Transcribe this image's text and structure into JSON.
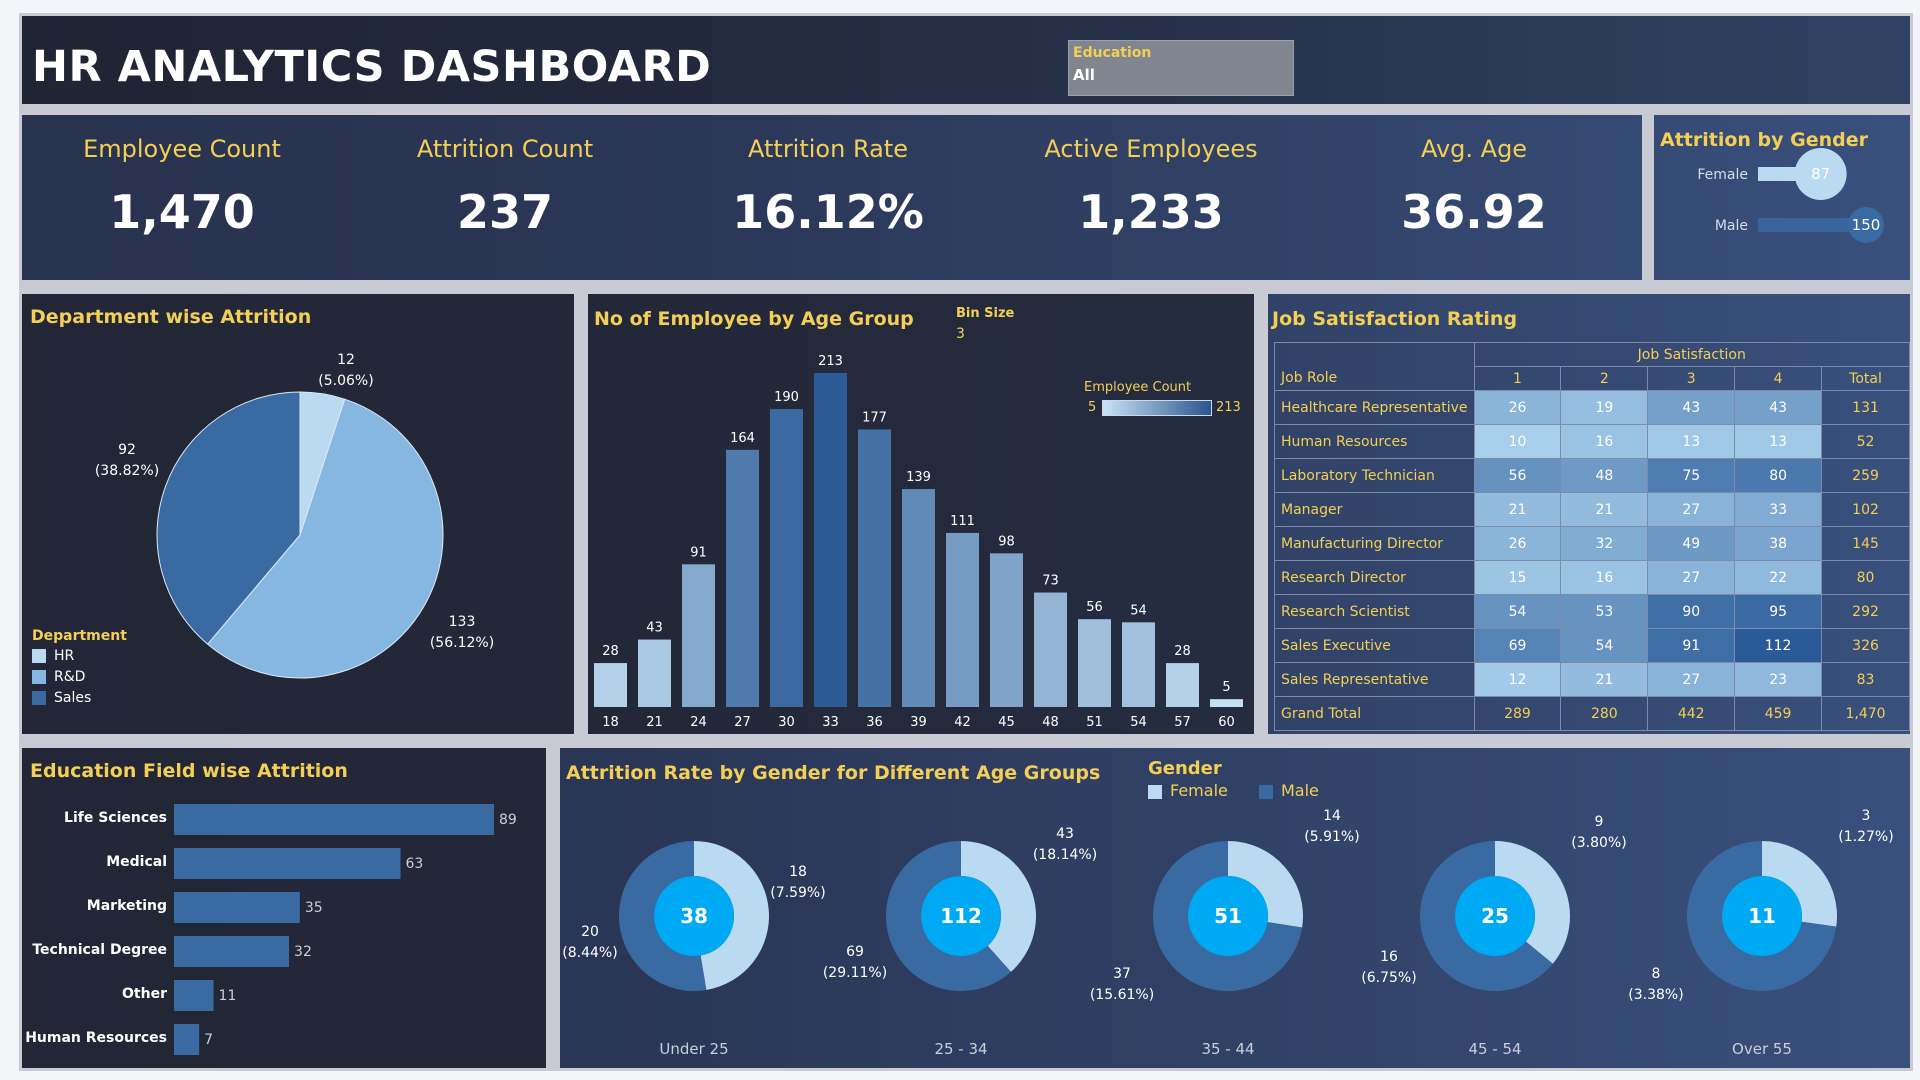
{
  "title": "HR ANALYTICS DASHBOARD",
  "filter": {
    "label": "Education",
    "value": "All"
  },
  "kpis": [
    {
      "label": "Employee Count",
      "value": "1,470"
    },
    {
      "label": "Attrition Count",
      "value": "237"
    },
    {
      "label": "Attrition Rate",
      "value": "16.12%"
    },
    {
      "label": "Active Employees",
      "value": "1,233"
    },
    {
      "label": "Avg. Age",
      "value": "36.92"
    }
  ],
  "colors": {
    "gold": "#f3cf56",
    "hr": "#b9daf0",
    "rd": "#86b7e0",
    "sales": "#3a6aa2",
    "cyan": "#00a9f4"
  },
  "chart_data": [
    {
      "id": "attrition_by_gender",
      "type": "bar",
      "title": "Attrition by Gender",
      "categories": [
        "Female",
        "Male"
      ],
      "values": [
        87,
        150
      ]
    },
    {
      "id": "department_attrition",
      "type": "pie",
      "title": "Department wise Attrition",
      "legend_title": "Department",
      "categories": [
        "HR",
        "R&D",
        "Sales"
      ],
      "values": [
        12,
        133,
        92
      ],
      "labels": [
        "12",
        "133",
        "92"
      ],
      "percents": [
        "(5.06%)",
        "(56.12%)",
        "(38.82%)"
      ]
    },
    {
      "id": "age_group",
      "type": "bar",
      "title": "No of Employee by Age Group",
      "bin_label": "Bin Size",
      "bin_value": "3",
      "legend_title": "Employee Count",
      "legend_min": "5",
      "legend_max": "213",
      "categories": [
        "18",
        "21",
        "24",
        "27",
        "30",
        "33",
        "36",
        "39",
        "42",
        "45",
        "48",
        "51",
        "54",
        "57",
        "60"
      ],
      "values": [
        28,
        43,
        91,
        164,
        190,
        213,
        177,
        139,
        111,
        98,
        73,
        56,
        54,
        28,
        5
      ],
      "ylim": [
        0,
        213
      ]
    },
    {
      "id": "job_satisfaction",
      "type": "table",
      "title": "Job Satisfaction Rating",
      "column_group": "Job Satisfaction",
      "row_header": "Job Role",
      "columns": [
        "1",
        "2",
        "3",
        "4",
        "Total"
      ],
      "rows": [
        {
          "role": "Healthcare Representative",
          "values": [
            26,
            19,
            43,
            43
          ],
          "total": "131"
        },
        {
          "role": "Human Resources",
          "values": [
            10,
            16,
            13,
            13
          ],
          "total": "52"
        },
        {
          "role": "Laboratory Technician",
          "values": [
            56,
            48,
            75,
            80
          ],
          "total": "259"
        },
        {
          "role": "Manager",
          "values": [
            21,
            21,
            27,
            33
          ],
          "total": "102"
        },
        {
          "role": "Manufacturing Director",
          "values": [
            26,
            32,
            49,
            38
          ],
          "total": "145"
        },
        {
          "role": "Research Director",
          "values": [
            15,
            16,
            27,
            22
          ],
          "total": "80"
        },
        {
          "role": "Research Scientist",
          "values": [
            54,
            53,
            90,
            95
          ],
          "total": "292"
        },
        {
          "role": "Sales Executive",
          "values": [
            69,
            54,
            91,
            112
          ],
          "total": "326"
        },
        {
          "role": "Sales Representative",
          "values": [
            12,
            21,
            27,
            23
          ],
          "total": "83"
        }
      ],
      "grand_total": {
        "label": "Grand Total",
        "values": [
          "289",
          "280",
          "442",
          "459"
        ],
        "total": "1,470"
      }
    },
    {
      "id": "education_field",
      "type": "bar",
      "title": "Education Field wise Attrition",
      "categories": [
        "Life Sciences",
        "Medical",
        "Marketing",
        "Technical Degree",
        "Other",
        "Human Resources"
      ],
      "values": [
        89,
        63,
        35,
        32,
        11,
        7
      ]
    },
    {
      "id": "gender_age_donuts",
      "type": "pie",
      "title": "Attrition Rate by Gender for Different Age Groups",
      "legend_title": "Gender",
      "series_names": [
        "Female",
        "Male"
      ],
      "groups": [
        {
          "name": "Under 25",
          "total": "38",
          "female": 18,
          "female_pct": "(7.59%)",
          "male": 20,
          "male_pct": "(8.44%)"
        },
        {
          "name": "25 - 34",
          "total": "112",
          "female": 43,
          "female_pct": "(18.14%)",
          "male": 69,
          "male_pct": "(29.11%)"
        },
        {
          "name": "35 - 44",
          "total": "51",
          "female": 14,
          "female_pct": "(5.91%)",
          "male": 37,
          "male_pct": "(15.61%)"
        },
        {
          "name": "45 - 54",
          "total": "25",
          "female": 9,
          "female_pct": "(3.80%)",
          "male": 16,
          "male_pct": "(6.75%)"
        },
        {
          "name": "Over 55",
          "total": "11",
          "female": 3,
          "female_pct": "(1.27%)",
          "male": 8,
          "male_pct": "(3.38%)"
        }
      ]
    }
  ]
}
